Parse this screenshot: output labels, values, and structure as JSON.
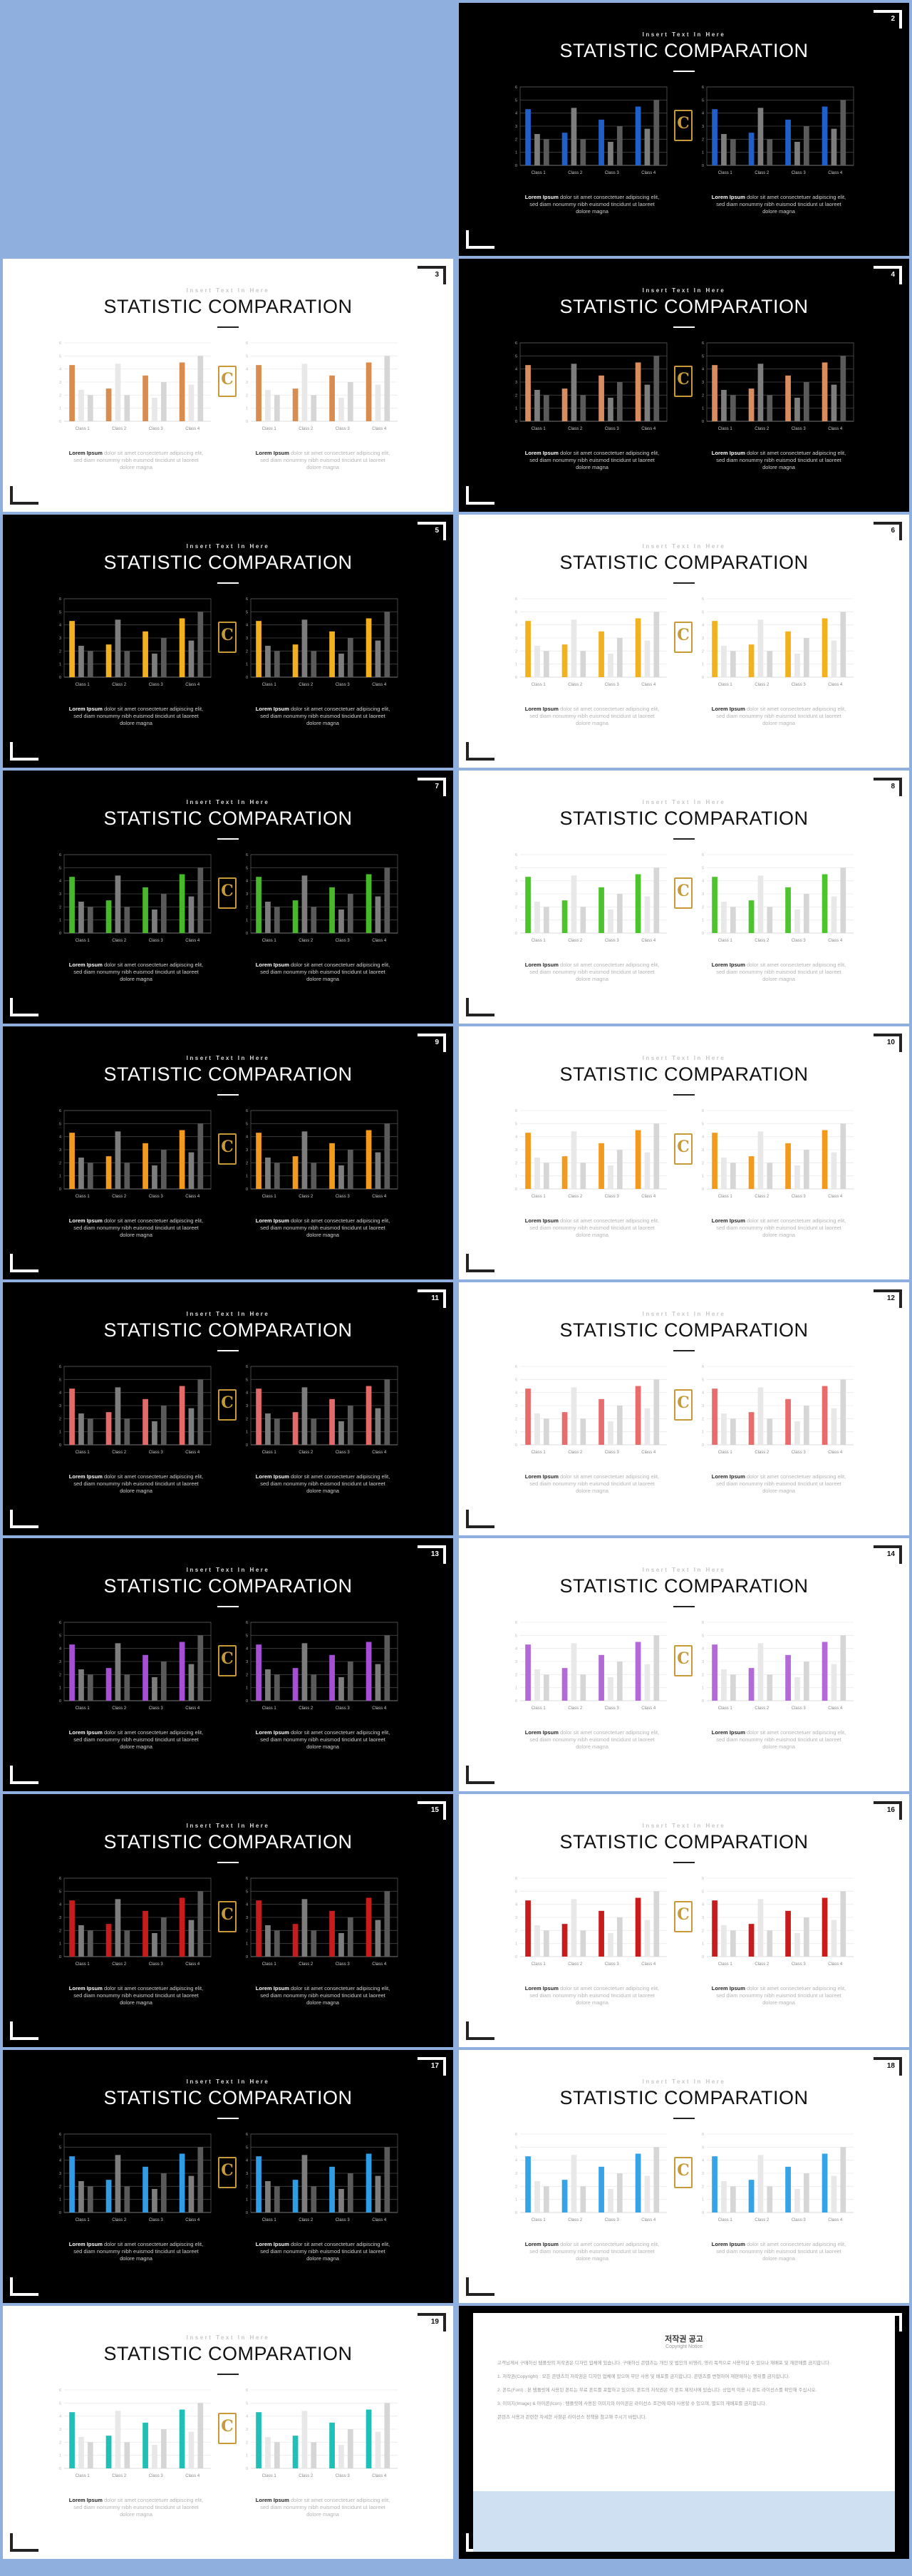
{
  "slide_common": {
    "subtitle": "Insert Text In Here",
    "title": "STATISTIC COMPARATION",
    "caption_bold": "Lorem Ipsum",
    "caption_text": "dolor sit amet consectetuer adipiscing elit, sed diam nonummy nibh euismod tincidunt ut laoreet dolore magna",
    "logo_letter": "C"
  },
  "slides": [
    {
      "num": "2",
      "theme": "dark",
      "accent": "#1f5fc9"
    },
    {
      "num": "3",
      "theme": "light",
      "accent": "#d98c4e"
    },
    {
      "num": "4",
      "theme": "dark",
      "accent": "#d98c5e"
    },
    {
      "num": "5",
      "theme": "dark",
      "accent": "#f2b01e"
    },
    {
      "num": "6",
      "theme": "light",
      "accent": "#f2b21e"
    },
    {
      "num": "7",
      "theme": "dark",
      "accent": "#46b82a"
    },
    {
      "num": "8",
      "theme": "light",
      "accent": "#4cc42c"
    },
    {
      "num": "9",
      "theme": "dark",
      "accent": "#f39a1c"
    },
    {
      "num": "10",
      "theme": "light",
      "accent": "#f39a1c"
    },
    {
      "num": "11",
      "theme": "dark",
      "accent": "#e46a6a"
    },
    {
      "num": "12",
      "theme": "light",
      "accent": "#e86c6c"
    },
    {
      "num": "13",
      "theme": "dark",
      "accent": "#a64fd6"
    },
    {
      "num": "14",
      "theme": "light",
      "accent": "#b36ad8"
    },
    {
      "num": "15",
      "theme": "dark",
      "accent": "#c81c1c"
    },
    {
      "num": "16",
      "theme": "light",
      "accent": "#c81c1c"
    },
    {
      "num": "17",
      "theme": "dark",
      "accent": "#2f9ce6"
    },
    {
      "num": "18",
      "theme": "light",
      "accent": "#35a3e8"
    },
    {
      "num": "19",
      "theme": "light",
      "accent": "#1fc0b8"
    },
    {
      "num": "20",
      "theme": "dark",
      "accent": "#1ab9b0"
    }
  ],
  "chart_data": {
    "type": "bar",
    "categories": [
      "Class 1",
      "Class 2",
      "Class 3",
      "Class 4"
    ],
    "yticks": [
      0,
      1,
      2,
      3,
      4,
      5,
      6
    ],
    "ylim": [
      0,
      6
    ],
    "series": [
      {
        "values": [
          4.3,
          2.5,
          3.5,
          4.5
        ]
      },
      {
        "values": [
          2.4,
          4.4,
          1.8,
          2.8
        ]
      },
      {
        "values": [
          2.0,
          2.0,
          3.0,
          5.0
        ]
      }
    ]
  },
  "notice": {
    "title": "저작권 공고",
    "subtitle": "Copyright Notice",
    "paragraphs": [
      "고객님께서 구매하신 템플릿의 저작권은 디자인 업체에 있습니다. 구매하신 콘텐츠는 개인 및 법인의 비영리, 영리 목적으로 사용하실 수 있으나 재배포 및 재판매를 금지합니다.",
      "1. 저작권(Copyright) : 모든 콘텐츠의 저작권은 디자인 업체에 있으며 무단 사용 및 배포를 금지합니다. 콘텐츠를 변형하여 재판매하는 행위를 금지합니다.",
      "2. 폰트(Font) : 본 템플릿에 사용된 폰트는 무료 폰트를 포함하고 있으며, 폰트의 저작권은 각 폰트 제작사에 있습니다. 상업적 이용 시 폰트 라이선스를 확인해 주십시오.",
      "3. 이미지(Image) & 아이콘(Icon) : 템플릿에 사용된 이미지와 아이콘은 라이선스 조건에 따라 사용할 수 있으며, 별도의 재배포를 금지합니다.",
      "콘텐츠 사용과 관련한 자세한 사항은 라이선스 정책을 참고해 주시기 바랍니다."
    ]
  }
}
